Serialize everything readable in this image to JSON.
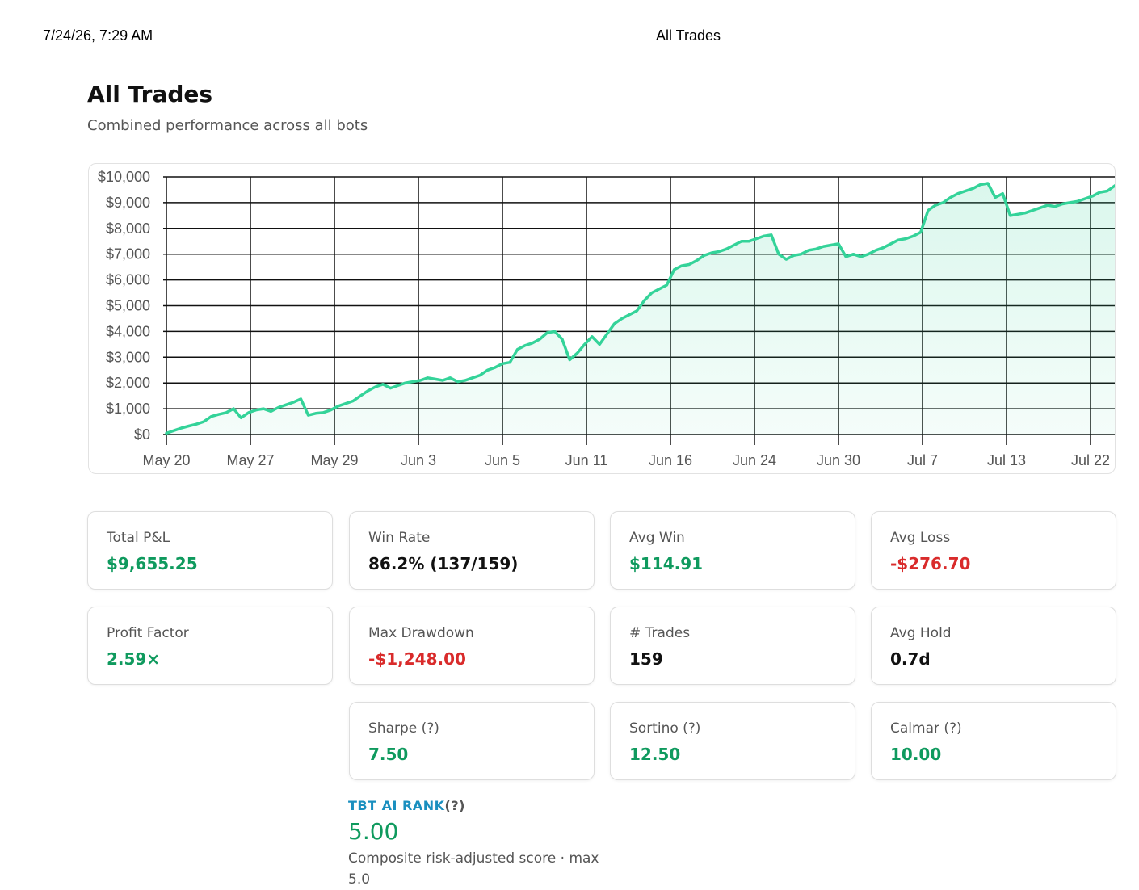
{
  "print_header": {
    "date": "7/24/26, 7:29 AM",
    "title": "All Trades"
  },
  "page": {
    "title": "All Trades",
    "subtitle": "Combined performance across all bots"
  },
  "colors": {
    "accent": "#34d399",
    "positive": "#0f9a5e",
    "negative": "#d92b2b",
    "rank": "#1a8fbf"
  },
  "chart_data": {
    "type": "area",
    "title": "",
    "xlabel": "",
    "ylabel": "",
    "ylim": [
      0,
      10000
    ],
    "yticks": [
      0,
      1000,
      2000,
      3000,
      4000,
      5000,
      6000,
      7000,
      8000,
      9000,
      10000
    ],
    "ytick_labels": [
      "$0",
      "$1,000",
      "$2,000",
      "$3,000",
      "$4,000",
      "$5,000",
      "$6,000",
      "$7,000",
      "$8,000",
      "$9,000",
      "$10,000"
    ],
    "xtick_labels": [
      "May 20",
      "May 27",
      "May 29",
      "Jun 3",
      "Jun 5",
      "Jun 11",
      "Jun 16",
      "Jun 24",
      "Jun 30",
      "Jul 7",
      "Jul 13",
      "Jul 22"
    ],
    "grid": true,
    "series": [
      {
        "values": [
          50,
          150,
          250,
          330,
          400,
          500,
          700,
          780,
          850,
          1000,
          650,
          850,
          950,
          1000,
          900,
          1050,
          1150,
          1250,
          1380,
          750,
          820,
          850,
          950,
          1100,
          1200,
          1300,
          1500,
          1700,
          1850,
          1950,
          1800,
          1900,
          2000,
          2050,
          2100,
          2200,
          2150,
          2100,
          2200,
          2050,
          2100,
          2200,
          2300,
          2500,
          2600,
          2750,
          2800,
          3300,
          3450,
          3550,
          3700,
          3950,
          4000,
          3700,
          2900,
          3150,
          3500,
          3800,
          3500,
          3900,
          4300,
          4500,
          4650,
          4800,
          5200,
          5500,
          5650,
          5800,
          6400,
          6550,
          6600,
          6750,
          6950,
          7050,
          7100,
          7200,
          7350,
          7500,
          7500,
          7600,
          7700,
          7750,
          7000,
          6800,
          6950,
          7000,
          7150,
          7200,
          7300,
          7350,
          7400,
          6900,
          7000,
          6900,
          7000,
          7150,
          7250,
          7400,
          7550,
          7600,
          7700,
          7850,
          8700,
          8900,
          9000,
          9200,
          9350,
          9450,
          9550,
          9700,
          9750,
          9200,
          9350,
          8500,
          8550,
          8600,
          8700,
          8800,
          8900,
          8850,
          8950,
          9000,
          9050,
          9150,
          9250,
          9400,
          9450,
          9655.25
        ]
      }
    ]
  },
  "stats": [
    {
      "label": "Total P&L",
      "value": "$9,655.25"
    },
    {
      "label": "Win Rate",
      "value": "86.2% (137/159)"
    },
    {
      "label": "Avg Win",
      "value": "$114.91"
    },
    {
      "label": "Avg Loss",
      "value": "-$276.70"
    },
    {
      "label": "Profit Factor",
      "value": "2.59×"
    },
    {
      "label": "Max Drawdown",
      "value": "-$1,248.00"
    },
    {
      "label": "# Trades",
      "value": "159"
    },
    {
      "label": "Avg Hold",
      "value": "0.7d"
    },
    {
      "label": "Sharpe (?)",
      "value": "7.50"
    },
    {
      "label": "Sortino (?)",
      "value": "12.50"
    },
    {
      "label": "Calmar (?)",
      "value": "10.00"
    }
  ],
  "rank": {
    "title": "TBT AI RANK",
    "help": "(?)",
    "value": "5.00",
    "caption": "Composite risk-adjusted score · max 5.0"
  }
}
